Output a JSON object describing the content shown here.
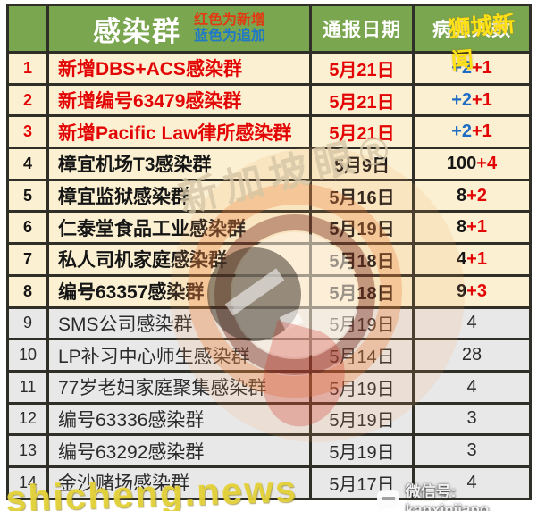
{
  "header": {
    "col_cluster": "感染群",
    "legend_red": "红色为新增",
    "legend_blue": "蓝色为追加",
    "col_date": "通报日期",
    "col_count": "病患人数"
  },
  "rows": [
    {
      "num": "1",
      "name": "新增DBS+ACS感染群",
      "date": "5月21日",
      "tone": "new",
      "count": [
        {
          "t": "+2",
          "c": "blue"
        },
        {
          "t": "+1",
          "c": "red"
        }
      ]
    },
    {
      "num": "2",
      "name": "新增编号63479感染群",
      "date": "5月21日",
      "tone": "new",
      "count": [
        {
          "t": "+2",
          "c": "blue"
        },
        {
          "t": "+1",
          "c": "red"
        }
      ]
    },
    {
      "num": "3",
      "name": "新增Pacific Law律所感染群",
      "date": "5月21日",
      "tone": "new",
      "count": [
        {
          "t": "+2",
          "c": "blue"
        },
        {
          "t": "+1",
          "c": "red"
        }
      ]
    },
    {
      "num": "4",
      "name": "樟宜机场T3感染群",
      "date": "5月9日",
      "tone": "bold",
      "count": [
        {
          "t": "100",
          "c": "black"
        },
        {
          "t": "+4",
          "c": "red"
        }
      ]
    },
    {
      "num": "5",
      "name": "樟宜监狱感染群",
      "date": "5月16日",
      "tone": "bold",
      "count": [
        {
          "t": "8",
          "c": "black"
        },
        {
          "t": "+2",
          "c": "red"
        }
      ]
    },
    {
      "num": "6",
      "name": "仁泰堂食品工业感染群",
      "date": "5月19日",
      "tone": "bold",
      "count": [
        {
          "t": "8",
          "c": "black"
        },
        {
          "t": "+1",
          "c": "red"
        }
      ]
    },
    {
      "num": "7",
      "name": "私人司机家庭感染群",
      "date": "5月18日",
      "tone": "bold",
      "count": [
        {
          "t": "4",
          "c": "black"
        },
        {
          "t": "+1",
          "c": "red"
        }
      ]
    },
    {
      "num": "8",
      "name": "编号63357感染群",
      "date": "5月18日",
      "tone": "bold",
      "count": [
        {
          "t": "9",
          "c": "black"
        },
        {
          "t": "+3",
          "c": "red"
        }
      ]
    },
    {
      "num": "9",
      "name": "SMS公司感染群",
      "date": "5月19日",
      "tone": "plain",
      "count": [
        {
          "t": "4",
          "c": "black"
        }
      ]
    },
    {
      "num": "10",
      "name": "LP补习中心师生感染群",
      "date": "5月14日",
      "tone": "plain",
      "count": [
        {
          "t": "28",
          "c": "black"
        }
      ]
    },
    {
      "num": "11",
      "name": "77岁老妇家庭聚集感染群",
      "date": "5月19日",
      "tone": "plain",
      "count": [
        {
          "t": "4",
          "c": "black"
        }
      ]
    },
    {
      "num": "12",
      "name": "编号63336感染群",
      "date": "5月19日",
      "tone": "plain",
      "count": [
        {
          "t": "3",
          "c": "black"
        }
      ]
    },
    {
      "num": "13",
      "name": "编号63292感染群",
      "date": "5月19日",
      "tone": "plain",
      "count": [
        {
          "t": "3",
          "c": "black"
        }
      ]
    },
    {
      "num": "14",
      "name": "金沙赌场感染群",
      "date": "5月17日",
      "tone": "plain",
      "count": [
        {
          "t": "4",
          "c": "black"
        }
      ]
    }
  ],
  "watermarks": {
    "top_right": "狮城新闻",
    "diagonal": "新加坡眼®",
    "bottom_left": "shicheng.news",
    "wechat": "微信号: kanxinjiapo"
  },
  "colors": {
    "header_green": "#7aa64f",
    "row_cream": "#fbf0d1",
    "row_gray": "#e8e8e8",
    "accent_red": "#e30505",
    "accent_blue": "#1e6cc4",
    "border_dark": "#2f2f27",
    "watermark_yellow": "#ffe215"
  },
  "chart_data": {
    "type": "table",
    "title": "感染群",
    "legend": [
      "红色为新增",
      "蓝色为追加"
    ],
    "columns": [
      "",
      "感染群",
      "通报日期",
      "病患人数"
    ],
    "rows": [
      [
        "1",
        "新增DBS+ACS感染群",
        "5月21日",
        "+2+1"
      ],
      [
        "2",
        "新增编号63479感染群",
        "5月21日",
        "+2+1"
      ],
      [
        "3",
        "新增Pacific Law律所感染群",
        "5月21日",
        "+2+1"
      ],
      [
        "4",
        "樟宜机场T3感染群",
        "5月9日",
        "100+4"
      ],
      [
        "5",
        "樟宜监狱感染群",
        "5月16日",
        "8+2"
      ],
      [
        "6",
        "仁泰堂食品工业感染群",
        "5月19日",
        "8+1"
      ],
      [
        "7",
        "私人司机家庭感染群",
        "5月18日",
        "4+1"
      ],
      [
        "8",
        "编号63357感染群",
        "5月18日",
        "9+3"
      ],
      [
        "9",
        "SMS公司感染群",
        "5月19日",
        "4"
      ],
      [
        "10",
        "LP补习中心师生感染群",
        "5月14日",
        "28"
      ],
      [
        "11",
        "77岁老妇家庭聚集感染群",
        "5月19日",
        "4"
      ],
      [
        "12",
        "编号63336感染群",
        "5月19日",
        "3"
      ],
      [
        "13",
        "编号63292感染群",
        "5月19日",
        "3"
      ],
      [
        "14",
        "金沙赌场感染群",
        "5月17日",
        "4"
      ]
    ]
  }
}
